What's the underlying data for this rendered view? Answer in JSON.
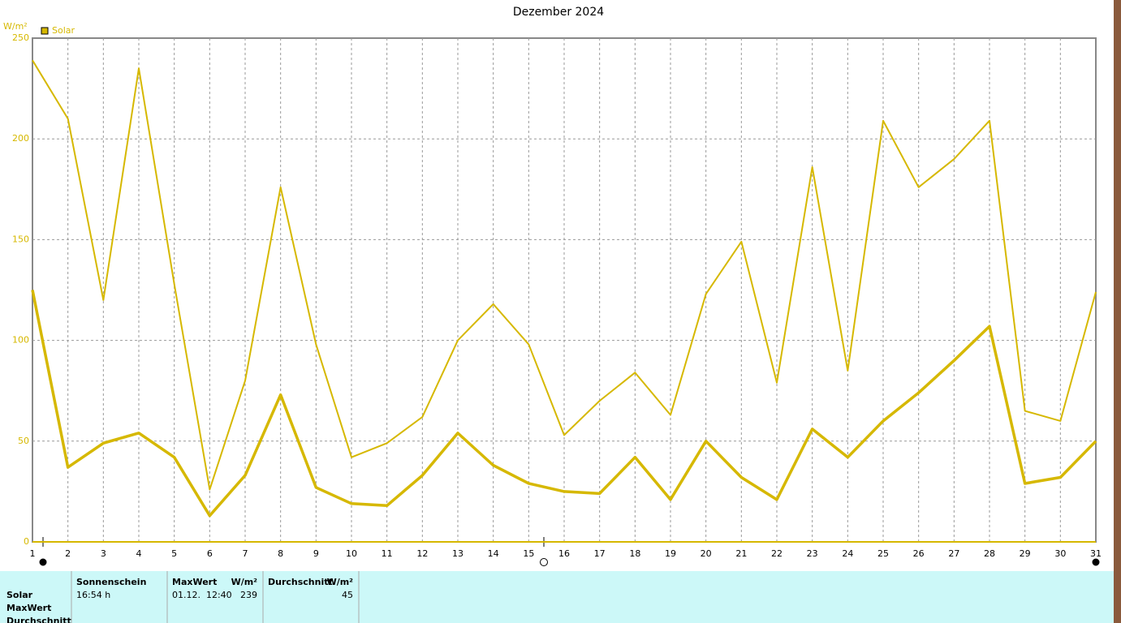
{
  "chart_data": {
    "type": "line",
    "title": "Dezember 2024",
    "y_label": "W/m²",
    "x": [
      1,
      2,
      3,
      4,
      5,
      6,
      7,
      8,
      9,
      10,
      11,
      12,
      13,
      14,
      15,
      16,
      17,
      18,
      19,
      20,
      21,
      22,
      23,
      24,
      25,
      26,
      27,
      28,
      29,
      30,
      31
    ],
    "series": [
      {
        "name": "Solar",
        "color": "#d6b800",
        "values": [
          239,
          210,
          120,
          235,
          128,
          26,
          80,
          176,
          98,
          42,
          49,
          62,
          100,
          118,
          98,
          53,
          70,
          84,
          63,
          123,
          149,
          79,
          186,
          85,
          209,
          176,
          190,
          209,
          65,
          60,
          124
        ]
      },
      {
        "color": "#d6b800",
        "values": [
          125,
          37,
          49,
          54,
          42,
          13,
          33,
          73,
          27,
          19,
          18,
          33,
          54,
          38,
          29,
          25,
          24,
          42,
          21,
          50,
          32,
          21,
          56,
          42,
          60,
          74,
          90,
          107,
          29,
          32,
          50
        ]
      }
    ],
    "xlim": [
      1,
      31
    ],
    "xticks": [
      1,
      2,
      3,
      4,
      5,
      6,
      7,
      8,
      9,
      10,
      11,
      12,
      13,
      14,
      15,
      16,
      17,
      18,
      19,
      20,
      21,
      22,
      23,
      24,
      25,
      26,
      27,
      28,
      29,
      30,
      31
    ],
    "ylim": [
      0,
      250
    ],
    "yticks": [
      0,
      50,
      100,
      150,
      200,
      250
    ],
    "grid": true
  },
  "table": {
    "headers": [
      "Sonnenschein",
      "MaxWert",
      "W/m²",
      "Durchschnitt",
      "W/m²"
    ],
    "row_labels": [
      "Solar",
      "MaxWert",
      "Durchschnitt"
    ],
    "rows": [
      [
        "16:54 h",
        "01.12.  12:40",
        "239",
        "45"
      ]
    ]
  }
}
